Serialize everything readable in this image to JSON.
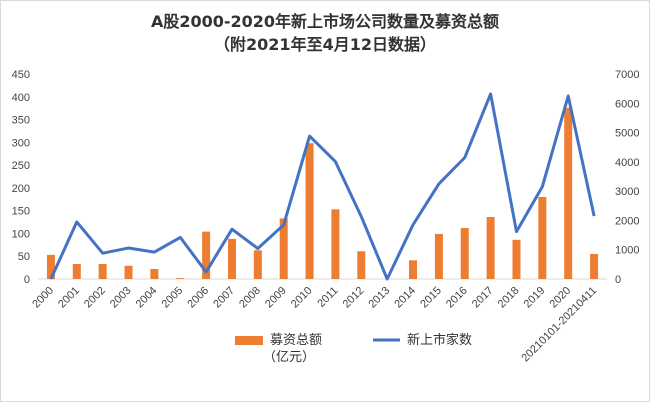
{
  "chart_data": {
    "type": "bar+line",
    "title_line1": "A股2000-2020年新上市场公司数量及募资总额",
    "title_line2": "（附2021年至4月12日数据）",
    "categories": [
      "2000",
      "2001",
      "2002",
      "2003",
      "2004",
      "2005",
      "2006",
      "2007",
      "2008",
      "2009",
      "2010",
      "2011",
      "2012",
      "2013",
      "2014",
      "2015",
      "2016",
      "2017",
      "2018",
      "2019",
      "2020",
      "20210101-20210411"
    ],
    "series": [
      {
        "name": "募资总额（亿元）",
        "legend_line1": "募资总额",
        "legend_line2": "（亿元）",
        "type": "bar",
        "axis": "left",
        "color": "#ED7D31",
        "values": [
          53,
          33,
          33,
          29,
          22,
          2,
          104,
          88,
          63,
          133,
          298,
          153,
          61,
          0,
          41,
          99,
          112,
          136,
          86,
          180,
          376,
          55
        ]
      },
      {
        "name": "新上市家数",
        "type": "line",
        "axis": "right",
        "color": "#4472C4",
        "values": [
          0,
          1950,
          880,
          1060,
          920,
          1420,
          240,
          1700,
          1040,
          1850,
          4880,
          4010,
          2130,
          0,
          1850,
          3250,
          4150,
          6320,
          1620,
          3150,
          6250,
          2150
        ]
      }
    ],
    "y_left": {
      "min": 0,
      "max": 450,
      "step": 50,
      "ticks": [
        "0",
        "50",
        "100",
        "150",
        "200",
        "250",
        "300",
        "350",
        "400",
        "450"
      ]
    },
    "y_right": {
      "min": 0,
      "max": 7000,
      "step": 1000,
      "ticks": [
        "0",
        "1000",
        "2000",
        "3000",
        "4000",
        "5000",
        "6000",
        "7000"
      ]
    },
    "grid": false,
    "legend_position": "bottom"
  }
}
